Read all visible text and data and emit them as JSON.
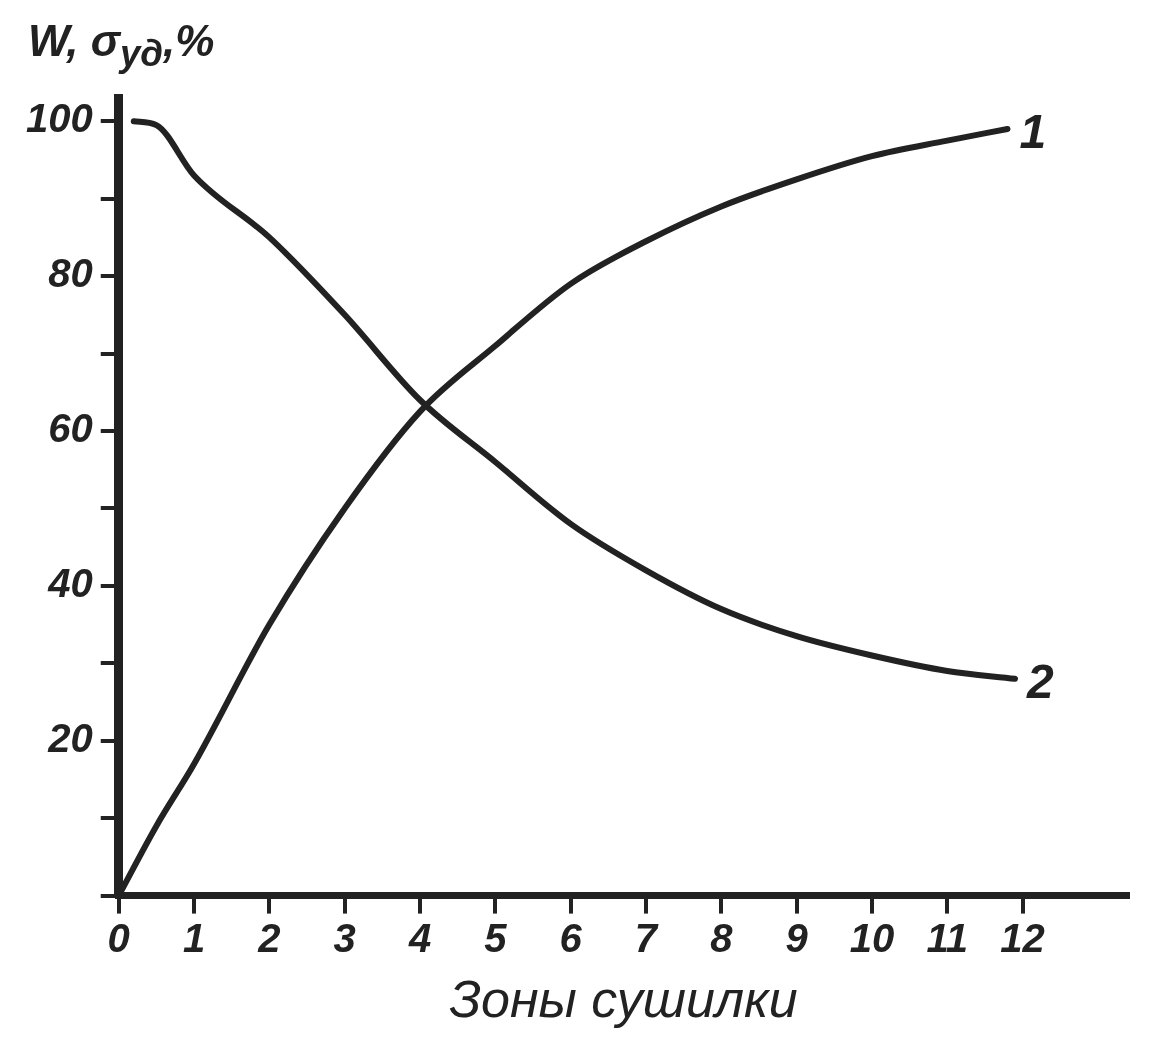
{
  "chart_data": {
    "type": "line",
    "xlabel": "Зоны сушилки",
    "ylabel": "W, σ$_{уд}$,%",
    "xlim": [
      0,
      13.4
    ],
    "ylim": [
      0,
      103
    ],
    "xticks": [
      0,
      1,
      2,
      3,
      4,
      5,
      6,
      7,
      8,
      9,
      10,
      11,
      12
    ],
    "yticks": [
      {
        "value": 0,
        "label": null
      },
      {
        "value": 10,
        "label": null
      },
      20,
      {
        "value": 30,
        "label": null
      },
      40,
      {
        "value": 50,
        "label": null
      },
      60,
      {
        "value": 70,
        "label": null
      },
      80,
      {
        "value": 90,
        "label": null
      },
      100
    ],
    "legend": false,
    "marker": "none",
    "line_style": "solid",
    "series": [
      {
        "name": "1",
        "color": "#222222",
        "x": [
          0,
          0.5,
          1,
          2,
          3,
          4,
          5,
          6,
          7,
          8,
          9,
          10,
          11,
          11.8
        ],
        "values": [
          0,
          9,
          17,
          35,
          50,
          62.5,
          71,
          79,
          84.5,
          89,
          92.5,
          95.5,
          97.5,
          99
        ]
      },
      {
        "name": "2",
        "color": "#222222",
        "x": [
          0.2,
          0.5,
          1,
          2,
          3,
          4,
          5,
          6,
          7,
          8,
          9,
          10,
          11,
          11.9
        ],
        "values": [
          100,
          99.5,
          93,
          85,
          75,
          64,
          56,
          48,
          42,
          37,
          33.5,
          31,
          29,
          28
        ]
      }
    ]
  }
}
